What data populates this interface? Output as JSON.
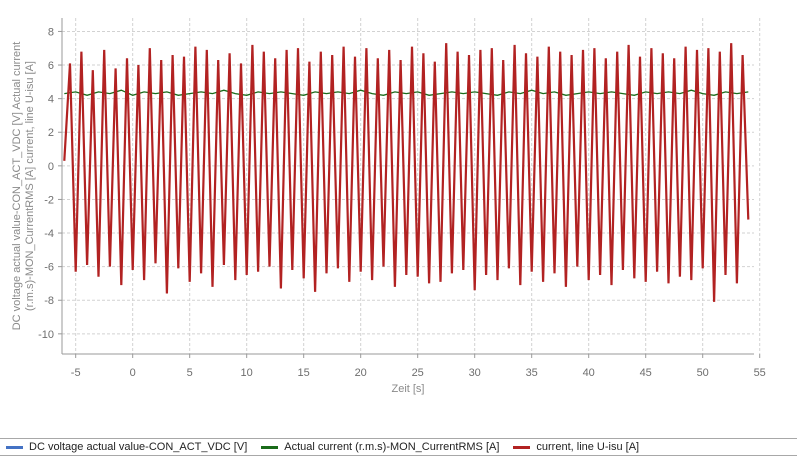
{
  "chart_data": {
    "type": "line",
    "title": "",
    "xlabel": "Zeit [s]",
    "ylabel_lines": [
      "DC voltage actual value-CON_ACT_VDC [V]  Actual current",
      "(r.m.s)-MON_CurrentRMS [A]  current, line U-isu [A]"
    ],
    "xlim": [
      -6.2,
      54.5
    ],
    "ylim": [
      -11.2,
      8.8
    ],
    "x_ticks": [
      -5,
      0,
      5,
      10,
      15,
      20,
      25,
      30,
      35,
      40,
      45,
      50,
      55
    ],
    "y_ticks": [
      -10,
      -8,
      -6,
      -4,
      -2,
      0,
      2,
      4,
      6,
      8
    ],
    "grid": true,
    "legend_position": "bottom",
    "series": [
      {
        "name": "DC voltage actual value-CON_ACT_VDC [V]",
        "color": "#4472c4",
        "x": [],
        "y": []
      },
      {
        "name": "Actual current  (r.m.s)-MON_CurrentRMS [A]",
        "color": "#1a6b1a",
        "x": [
          -6,
          -5,
          -4,
          -3,
          -2,
          -1,
          0,
          1,
          2,
          3,
          4,
          5,
          6,
          7,
          8,
          9,
          10,
          11,
          12,
          13,
          14,
          15,
          16,
          17,
          18,
          19,
          20,
          21,
          22,
          23,
          24,
          25,
          26,
          27,
          28,
          29,
          30,
          31,
          32,
          33,
          34,
          35,
          36,
          37,
          38,
          39,
          40,
          41,
          42,
          43,
          44,
          45,
          46,
          47,
          48,
          49,
          50,
          51,
          52,
          53,
          54
        ],
        "y": [
          4.3,
          4.4,
          4.2,
          4.4,
          4.3,
          4.5,
          4.2,
          4.4,
          4.3,
          4.4,
          4.2,
          4.3,
          4.4,
          4.3,
          4.5,
          4.3,
          4.2,
          4.4,
          4.3,
          4.4,
          4.3,
          4.2,
          4.4,
          4.3,
          4.4,
          4.3,
          4.5,
          4.3,
          4.2,
          4.4,
          4.3,
          4.4,
          4.2,
          4.3,
          4.4,
          4.3,
          4.4,
          4.3,
          4.2,
          4.4,
          4.3,
          4.5,
          4.3,
          4.4,
          4.2,
          4.3,
          4.4,
          4.3,
          4.4,
          4.3,
          4.2,
          4.4,
          4.3,
          4.4,
          4.3,
          4.5,
          4.3,
          4.2,
          4.4,
          4.3,
          4.4
        ]
      },
      {
        "name": "current, line U-isu [A]",
        "color": "#b22222",
        "x": [
          -6,
          -5.5,
          -5,
          -4.5,
          -4,
          -3.5,
          -3,
          -2.5,
          -2,
          -1.5,
          -1,
          -0.5,
          0,
          0.5,
          1,
          1.5,
          2,
          2.5,
          3,
          3.5,
          4,
          4.5,
          5,
          5.5,
          6,
          6.5,
          7,
          7.5,
          8,
          8.5,
          9,
          9.5,
          10,
          10.5,
          11,
          11.5,
          12,
          12.5,
          13,
          13.5,
          14,
          14.5,
          15,
          15.5,
          16,
          16.5,
          17,
          17.5,
          18,
          18.5,
          19,
          19.5,
          20,
          20.5,
          21,
          21.5,
          22,
          22.5,
          23,
          23.5,
          24,
          24.5,
          25,
          25.5,
          26,
          26.5,
          27,
          27.5,
          28,
          28.5,
          29,
          29.5,
          30,
          30.5,
          31,
          31.5,
          32,
          32.5,
          33,
          33.5,
          34,
          34.5,
          35,
          35.5,
          36,
          36.5,
          37,
          37.5,
          38,
          38.5,
          39,
          39.5,
          40,
          40.5,
          41,
          41.5,
          42,
          42.5,
          43,
          43.5,
          44,
          44.5,
          45,
          45.5,
          46,
          46.5,
          47,
          47.5,
          48,
          48.5,
          49,
          49.5,
          50,
          50.5,
          51,
          51.5,
          52,
          52.5,
          53,
          53.5,
          54
        ],
        "y": [
          0.3,
          6.1,
          -6.3,
          6.8,
          -5.9,
          5.7,
          -6.6,
          6.9,
          -6.0,
          5.8,
          -7.1,
          6.4,
          -6.2,
          6.0,
          -6.8,
          7.0,
          -5.8,
          6.3,
          -7.6,
          6.6,
          -6.1,
          6.5,
          -6.9,
          7.1,
          -6.4,
          6.9,
          -7.2,
          6.3,
          -5.9,
          6.7,
          -6.8,
          6.1,
          -6.5,
          7.2,
          -6.3,
          6.8,
          -6.0,
          6.4,
          -7.3,
          6.9,
          -6.2,
          7.0,
          -6.7,
          6.2,
          -7.5,
          6.8,
          -6.4,
          6.6,
          -6.1,
          7.1,
          -6.9,
          6.5,
          -6.3,
          7.0,
          -6.8,
          6.4,
          -6.0,
          6.9,
          -7.2,
          6.3,
          -6.5,
          7.1,
          -6.6,
          6.7,
          -7.0,
          6.2,
          -6.9,
          7.3,
          -6.4,
          6.8,
          -6.2,
          6.6,
          -7.4,
          6.9,
          -6.5,
          7.0,
          -6.8,
          6.3,
          -6.1,
          7.2,
          -7.1,
          6.7,
          -6.3,
          6.5,
          -6.9,
          7.1,
          -6.4,
          6.8,
          -7.2,
          6.6,
          -6.0,
          6.9,
          -6.8,
          7.0,
          -6.5,
          6.4,
          -7.1,
          6.8,
          -6.2,
          7.2,
          -6.7,
          6.5,
          -6.9,
          7.0,
          -6.3,
          6.7,
          -7.0,
          6.4,
          -6.6,
          7.1,
          -6.8,
          6.9,
          -6.1,
          7.0,
          -8.1,
          6.8,
          -6.5,
          7.3,
          -7.0,
          6.6,
          -3.2
        ]
      }
    ]
  }
}
